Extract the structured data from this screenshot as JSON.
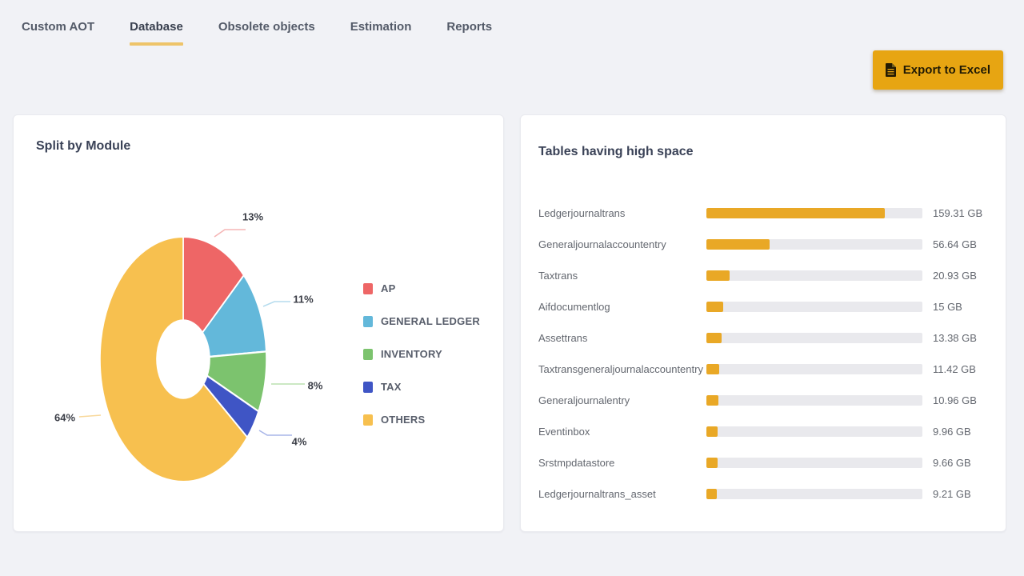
{
  "nav": {
    "tabs": [
      {
        "label": "Custom AOT",
        "active": false
      },
      {
        "label": "Database",
        "active": true
      },
      {
        "label": "Obsolete objects",
        "active": false
      },
      {
        "label": "Estimation",
        "active": false
      },
      {
        "label": "Reports",
        "active": false
      }
    ],
    "active_underline_color": "#eec469"
  },
  "export_button": {
    "label": "Export to Excel",
    "icon": "excel-file-icon",
    "background": "#e7a512"
  },
  "chart_data": [
    {
      "type": "pie",
      "donut": true,
      "title": "Split by Module",
      "labels": [
        "AP",
        "GENERAL LEDGER",
        "INVENTORY",
        "TAX",
        "OTHERS"
      ],
      "values": [
        13,
        11,
        8,
        4,
        64
      ],
      "unit": "%",
      "colors": [
        "#ee6666",
        "#63b8da",
        "#7cc36e",
        "#3f55c5",
        "#f7c04f"
      ],
      "leader_colors": [
        "#f5b5b5",
        "#b5dcee",
        "#bce0b1",
        "#a8b6e8",
        "#f8d89b"
      ],
      "legend_position": "right",
      "start_angle_deg": 0,
      "direction": "clockwise"
    },
    {
      "type": "bar",
      "orientation": "horizontal",
      "title": "Tables having high space",
      "categories": [
        "Ledgerjournaltrans",
        "Generaljournalaccountentry",
        "Taxtrans",
        "Aifdocumentlog",
        "Assettrans",
        "Taxtransgeneraljournalaccountentry",
        "Generaljournalentry",
        "Eventinbox",
        "Srstmpdatastore",
        "Ledgerjournaltrans_asset"
      ],
      "values": [
        159.31,
        56.64,
        20.93,
        15,
        13.38,
        11.42,
        10.96,
        9.96,
        9.66,
        9.21
      ],
      "value_labels": [
        "159.31 GB",
        "56.64 GB",
        "20.93 GB",
        "15 GB",
        "13.38 GB",
        "11.42 GB",
        "10.96 GB",
        "9.96 GB",
        "9.66 GB",
        "9.21 GB"
      ],
      "unit": "GB",
      "scale_max": 193,
      "bar_color": "#e9a826",
      "track_color": "#e9e9ed"
    }
  ]
}
